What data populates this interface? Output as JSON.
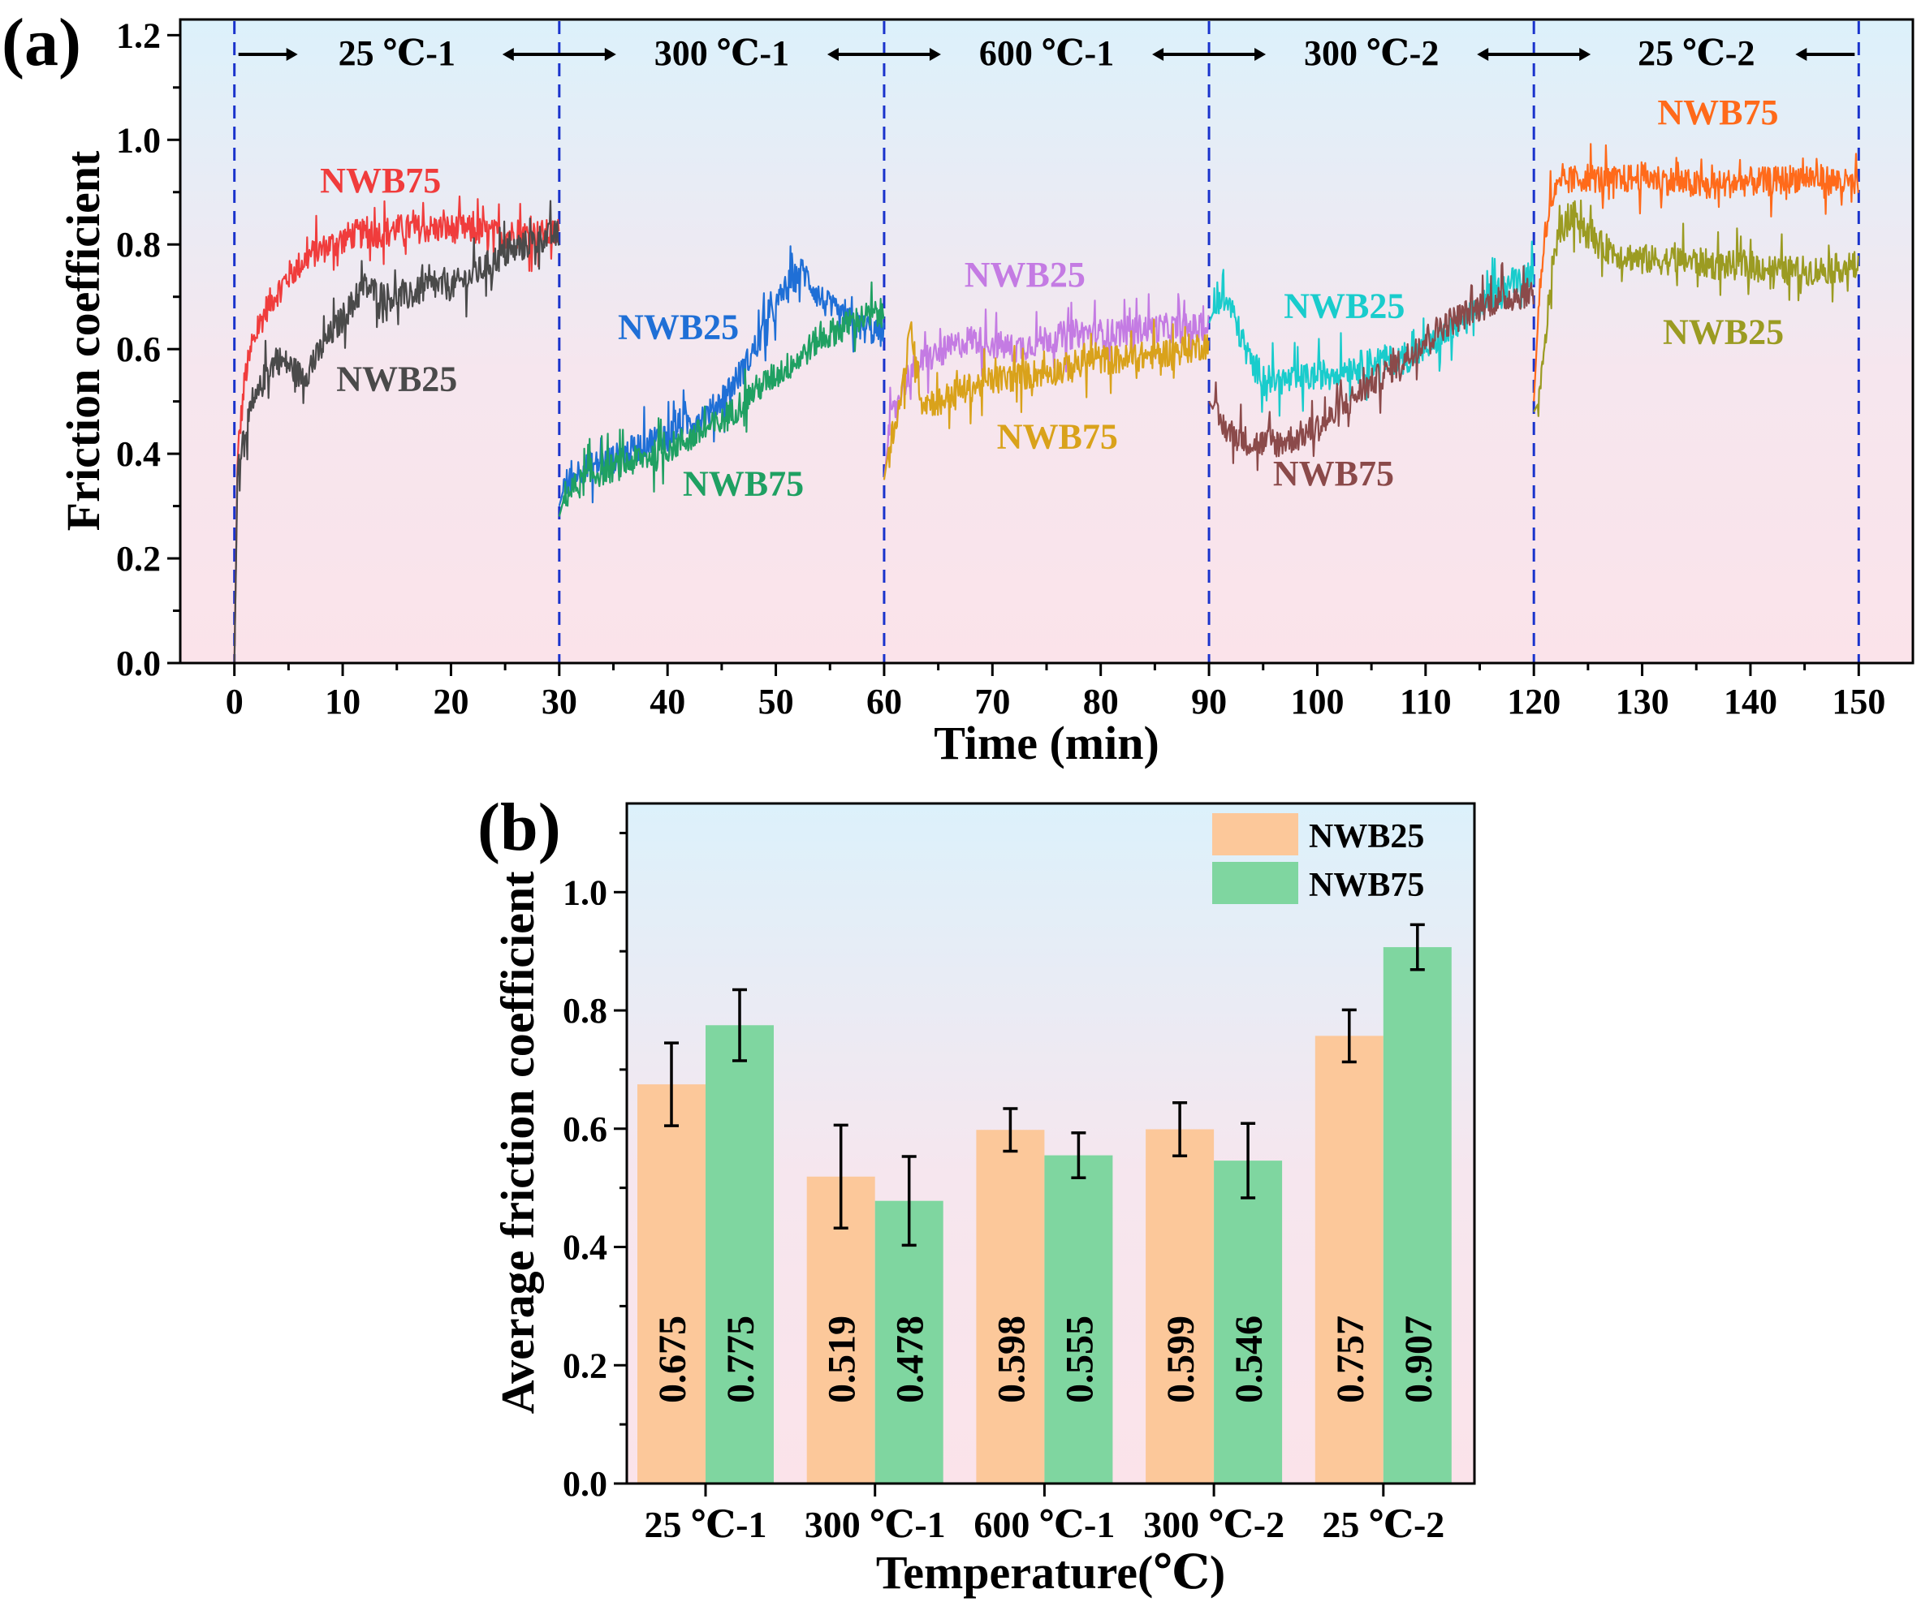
{
  "chart_data": [
    {
      "panel": "(a)",
      "type": "line",
      "xlabel": "Time (min)",
      "ylabel": "Friction coefficient",
      "xlim": [
        -5,
        155
      ],
      "ylim": [
        0,
        1.23
      ],
      "xticks": [
        "0",
        "10",
        "20",
        "30",
        "40",
        "50",
        "60",
        "70",
        "80",
        "90",
        "100",
        "110",
        "120",
        "130",
        "140",
        "150"
      ],
      "yticks": [
        "0.0",
        "0.2",
        "0.4",
        "0.6",
        "0.8",
        "1.0",
        "1.2"
      ],
      "phase_boundaries": [
        0,
        30,
        60,
        90,
        120,
        150
      ],
      "phase_labels": [
        "25 ℃-1",
        "300 ℃-1",
        "600 ℃-1",
        "300 ℃-2",
        "25 ℃-2"
      ],
      "background": "gradient: light blue (top) to light pink (bottom)",
      "series": [
        {
          "name": "NWB75",
          "color": "#f03c3c",
          "x": [
            0,
            0.3,
            1,
            2,
            3,
            5,
            7,
            9,
            11,
            13,
            15,
            18,
            21,
            24,
            27,
            30
          ],
          "y": [
            0,
            0.4,
            0.55,
            0.63,
            0.68,
            0.74,
            0.78,
            0.8,
            0.82,
            0.82,
            0.83,
            0.83,
            0.83,
            0.82,
            0.82,
            0.82
          ]
        },
        {
          "name": "NWB25",
          "color": "#4a4a4a",
          "x": [
            0,
            0.3,
            1,
            2,
            3,
            4,
            5,
            6,
            7,
            8,
            10,
            12,
            14,
            16,
            18,
            20,
            22,
            24,
            26,
            28,
            30
          ],
          "y": [
            0,
            0.38,
            0.45,
            0.5,
            0.56,
            0.58,
            0.57,
            0.55,
            0.56,
            0.6,
            0.66,
            0.72,
            0.7,
            0.7,
            0.72,
            0.72,
            0.74,
            0.77,
            0.79,
            0.81,
            0.82
          ]
        },
        {
          "name": "NWB25",
          "color": "#1f6fd6",
          "x": [
            30,
            30.5,
            32,
            35,
            38,
            41,
            44,
            47,
            49,
            51,
            52.5,
            54,
            56,
            58,
            60
          ],
          "y": [
            0.3,
            0.34,
            0.37,
            0.39,
            0.42,
            0.45,
            0.48,
            0.56,
            0.64,
            0.72,
            0.75,
            0.7,
            0.66,
            0.64,
            0.63
          ]
        },
        {
          "name": "NWB75",
          "color": "#1fa062",
          "x": [
            30,
            30.5,
            33,
            36,
            39,
            42,
            45,
            48,
            50,
            52,
            54,
            56,
            58,
            60
          ],
          "y": [
            0.28,
            0.32,
            0.36,
            0.38,
            0.4,
            0.43,
            0.46,
            0.52,
            0.55,
            0.58,
            0.62,
            0.64,
            0.66,
            0.67
          ]
        },
        {
          "name": "NWB25",
          "color": "#c47be3",
          "x": [
            60,
            60.5,
            61.5,
            62.5,
            64,
            66,
            68,
            70,
            72,
            75,
            78,
            81,
            84,
            87,
            90
          ],
          "y": [
            0.35,
            0.45,
            0.52,
            0.56,
            0.58,
            0.6,
            0.62,
            0.61,
            0.6,
            0.62,
            0.63,
            0.63,
            0.64,
            0.64,
            0.64
          ]
        },
        {
          "name": "NWB75",
          "color": "#d9a21b",
          "x": [
            60,
            60.5,
            61.5,
            62.5,
            63.5,
            65,
            67,
            70,
            73,
            76,
            79,
            82,
            85,
            88,
            90
          ],
          "y": [
            0.35,
            0.42,
            0.5,
            0.64,
            0.5,
            0.5,
            0.52,
            0.54,
            0.55,
            0.56,
            0.58,
            0.58,
            0.59,
            0.6,
            0.61
          ]
        },
        {
          "name": "NWB25",
          "color": "#19cccc",
          "x": [
            90,
            91,
            92,
            93,
            94,
            95,
            96,
            98,
            100,
            102,
            104,
            106,
            108,
            110,
            112,
            114,
            116,
            118,
            120
          ],
          "y": [
            0.65,
            0.7,
            0.68,
            0.62,
            0.57,
            0.55,
            0.54,
            0.54,
            0.55,
            0.56,
            0.57,
            0.58,
            0.58,
            0.6,
            0.63,
            0.66,
            0.7,
            0.73,
            0.75
          ]
        },
        {
          "name": "NWB75",
          "color": "#8b4a4a",
          "x": [
            90,
            91,
            92,
            93,
            94,
            96,
            98,
            100,
            102,
            104,
            106,
            108,
            110,
            112,
            114,
            116,
            118,
            120
          ],
          "y": [
            0.5,
            0.46,
            0.44,
            0.43,
            0.42,
            0.42,
            0.43,
            0.45,
            0.48,
            0.52,
            0.55,
            0.58,
            0.62,
            0.65,
            0.67,
            0.69,
            0.7,
            0.71
          ]
        },
        {
          "name": "NWB75",
          "color": "#ff6a1a",
          "x": [
            120,
            120.5,
            121,
            121.5,
            122,
            123,
            125,
            127,
            130,
            133,
            136,
            139,
            142,
            145,
            148,
            150
          ],
          "y": [
            0.5,
            0.7,
            0.82,
            0.88,
            0.9,
            0.92,
            0.93,
            0.92,
            0.93,
            0.92,
            0.91,
            0.92,
            0.92,
            0.93,
            0.92,
            0.91
          ]
        },
        {
          "name": "NWB25",
          "color": "#9b9b22",
          "x": [
            120,
            120.5,
            121,
            121.5,
            122,
            123,
            124,
            125,
            126,
            128,
            131,
            134,
            137,
            140,
            143,
            146,
            150
          ],
          "y": [
            0.48,
            0.5,
            0.6,
            0.72,
            0.8,
            0.84,
            0.86,
            0.82,
            0.8,
            0.78,
            0.77,
            0.77,
            0.76,
            0.76,
            0.75,
            0.75,
            0.76
          ]
        }
      ],
      "labels": [
        {
          "text": "NWB75",
          "color": "#f03c3c",
          "x": 13.5,
          "y": 0.9
        },
        {
          "text": "NWB25",
          "color": "#4a4a4a",
          "x": 15,
          "y": 0.52
        },
        {
          "text": "NWB25",
          "color": "#1f6fd6",
          "x": 41,
          "y": 0.62
        },
        {
          "text": "NWB75",
          "color": "#1fa062",
          "x": 47,
          "y": 0.32
        },
        {
          "text": "NWB25",
          "color": "#c47be3",
          "x": 73,
          "y": 0.72
        },
        {
          "text": "NWB75",
          "color": "#d9a21b",
          "x": 76,
          "y": 0.41
        },
        {
          "text": "NWB25",
          "color": "#19cccc",
          "x": 102.5,
          "y": 0.66
        },
        {
          "text": "NWB75",
          "color": "#8b4a4a",
          "x": 101.5,
          "y": 0.34
        },
        {
          "text": "NWB75",
          "color": "#ff6a1a",
          "x": 137,
          "y": 1.03
        },
        {
          "text": "NWB25",
          "color": "#9b9b22",
          "x": 137.5,
          "y": 0.61
        }
      ]
    },
    {
      "panel": "(b)",
      "type": "bar",
      "xlabel": "Temperature(℃)",
      "ylabel": "Average friction coefficient",
      "ylim": [
        0,
        1.15
      ],
      "yticks": [
        "0.0",
        "0.2",
        "0.4",
        "0.6",
        "0.8",
        "1.0"
      ],
      "categories": [
        "25 ℃-1",
        "300 ℃-1",
        "600 ℃-1",
        "300 ℃-2",
        "25 ℃-2"
      ],
      "legend_position": "top-right",
      "series": [
        {
          "name": "NWB25",
          "color": "#fcc89a",
          "values": [
            0.675,
            0.519,
            0.598,
            0.599,
            0.757
          ],
          "errors": [
            0.07,
            0.087,
            0.036,
            0.045,
            0.044
          ],
          "value_labels": [
            "0.675",
            "0.519",
            "0.598",
            "0.599",
            "0.757"
          ]
        },
        {
          "name": "NWB75",
          "color": "#7fd6a0",
          "values": [
            0.775,
            0.478,
            0.555,
            0.546,
            0.907
          ],
          "errors": [
            0.06,
            0.075,
            0.038,
            0.063,
            0.038
          ],
          "value_labels": [
            "0.775",
            "0.478",
            "0.555",
            "0.546",
            "0.907"
          ]
        }
      ]
    }
  ]
}
